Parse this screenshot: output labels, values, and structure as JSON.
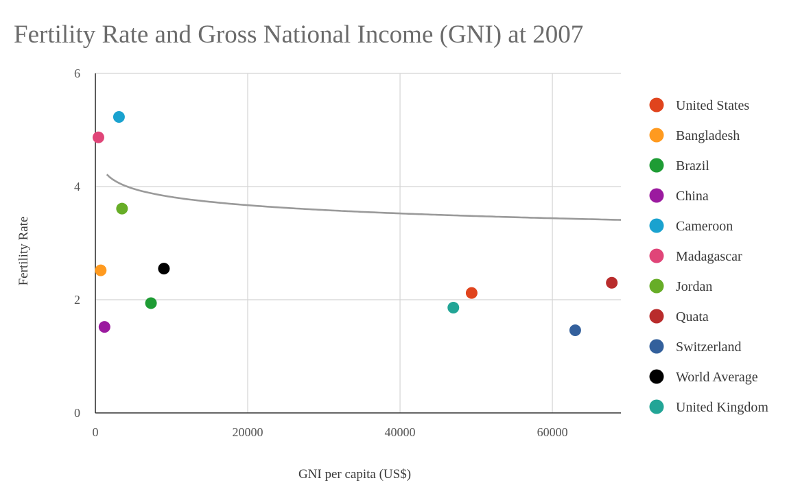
{
  "chart_data": {
    "type": "scatter",
    "title": "Fertility Rate and Gross National Income (GNI) at 2007",
    "xlabel": "GNI per capita (US$)",
    "ylabel": "Fertility Rate",
    "xlim": [
      0,
      69000
    ],
    "ylim": [
      0,
      6
    ],
    "x_ticks": [
      "0",
      "20000",
      "40000",
      "60000"
    ],
    "x_tick_values": [
      0,
      20000,
      40000,
      60000
    ],
    "y_ticks": [
      "0",
      "2",
      "4",
      "6"
    ],
    "y_tick_values": [
      0,
      2,
      4,
      6
    ],
    "grid": true,
    "legend_position": "right",
    "trendline": {
      "type": "logarithmic",
      "color": "#9a9a9a",
      "x_range": [
        1500,
        69000
      ],
      "a": 4.3,
      "b": -0.21
    },
    "series": [
      {
        "name": "United States",
        "color": "#e0441d",
        "x": [
          49400
        ],
        "y": [
          2.12
        ]
      },
      {
        "name": "Bangladesh",
        "color": "#ff9a1f",
        "x": [
          700
        ],
        "y": [
          2.52
        ]
      },
      {
        "name": "Brazil",
        "color": "#1e9c34",
        "x": [
          7300
        ],
        "y": [
          1.94
        ]
      },
      {
        "name": "China",
        "color": "#9b1a9f",
        "x": [
          1200
        ],
        "y": [
          1.52
        ]
      },
      {
        "name": "Cameroon",
        "color": "#1aa2cf",
        "x": [
          3100
        ],
        "y": [
          5.23
        ]
      },
      {
        "name": "Madagascar",
        "color": "#e04578",
        "x": [
          400
        ],
        "y": [
          4.87
        ]
      },
      {
        "name": "Jordan",
        "color": "#67ad27",
        "x": [
          3500
        ],
        "y": [
          3.61
        ]
      },
      {
        "name": "Quata",
        "color": "#b92c2c",
        "x": [
          67800
        ],
        "y": [
          2.3
        ]
      },
      {
        "name": "Switzerland",
        "color": "#33609c",
        "x": [
          63000
        ],
        "y": [
          1.46
        ]
      },
      {
        "name": "World Average",
        "color": "#000000",
        "x": [
          9000
        ],
        "y": [
          2.55
        ]
      },
      {
        "name": "United Kingdom",
        "color": "#22a596",
        "x": [
          47000
        ],
        "y": [
          1.86
        ]
      }
    ]
  }
}
